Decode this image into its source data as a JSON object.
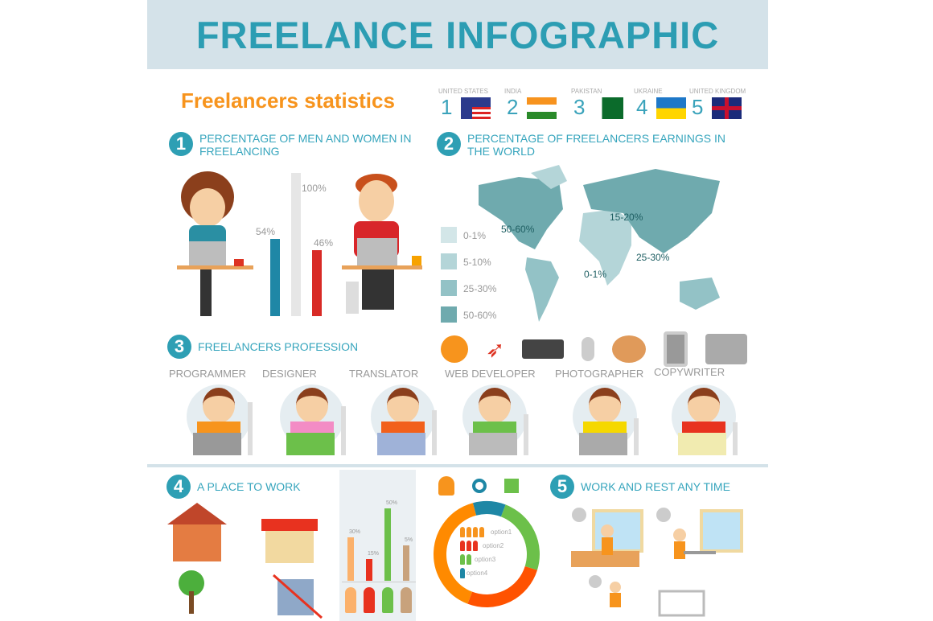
{
  "title": "FREELANCE INFOGRAPHIC",
  "subtitle": "Freelancers statistics",
  "countries": [
    {
      "rank": "1",
      "name": "UNITED STATES",
      "flag": "us-flag"
    },
    {
      "rank": "2",
      "name": "INDIA",
      "flag": "india-flag"
    },
    {
      "rank": "3",
      "name": "PAKISTAN",
      "flag": "pakistan-flag"
    },
    {
      "rank": "4",
      "name": "UKRAINE",
      "flag": "ukraine-flag"
    },
    {
      "rank": "5",
      "name": "UNITED KINGDOM",
      "flag": "uk-flag"
    }
  ],
  "sections": [
    {
      "num": "1",
      "title": "PERCENTAGE OF MEN AND WOMEN IN FREELANCING"
    },
    {
      "num": "2",
      "title": "PERCENTAGE OF FREELANCERS EARNINGS IN THE WORLD"
    },
    {
      "num": "3",
      "title": "FREELANCERS PROFESSION"
    },
    {
      "num": "4",
      "title": "A PLACE TO WORK"
    },
    {
      "num": "5",
      "title": "WORK AND REST ANY TIME"
    }
  ],
  "gender_bars": [
    {
      "label": "54%",
      "value": 54,
      "color": "#1f87a6"
    },
    {
      "label": "100%",
      "value": 100,
      "color": "#e6e6e6"
    },
    {
      "label": "46%",
      "value": 46,
      "color": "#d82a26"
    }
  ],
  "map": {
    "legend": [
      {
        "label": "0-1%",
        "color": "#d3e6e8"
      },
      {
        "label": "5-10%",
        "color": "#b4d5d8"
      },
      {
        "label": "25-30%",
        "color": "#93c2c6"
      },
      {
        "label": "50-60%",
        "color": "#6faaae"
      }
    ],
    "labels": [
      "50-60%",
      "15-20%",
      "25-30%",
      "0-1%"
    ]
  },
  "professions": [
    "PROGRAMMER",
    "DESIGNER",
    "TRANSLATOR",
    "WEB DEVELOPER",
    "PHOTOGRAPHER",
    "COPYWRITER"
  ],
  "place_bars": [
    {
      "label": "30%",
      "value": 30,
      "color": "#fbb16b"
    },
    {
      "label": "15%",
      "value": 15,
      "color": "#e8321f"
    },
    {
      "label": "50%",
      "value": 50,
      "color": "#6cc04a"
    },
    {
      "label": "5%",
      "value": 5,
      "color": "#c8a27c"
    }
  ],
  "donut": {
    "segments": [
      {
        "color": "#1e87a5",
        "value": 10
      },
      {
        "color": "#6cc04a",
        "value": 24
      },
      {
        "color": "#ff5200",
        "value": 26
      },
      {
        "color": "#ff8a00",
        "value": 40
      }
    ],
    "options": [
      {
        "label": "option1",
        "count": 4,
        "color": "#f7941d"
      },
      {
        "label": "option2",
        "count": 3,
        "color": "#e8321f"
      },
      {
        "label": "option3",
        "count": 2,
        "color": "#6cc04a"
      },
      {
        "label": "option4",
        "count": 1,
        "color": "#1e87a5"
      }
    ]
  }
}
